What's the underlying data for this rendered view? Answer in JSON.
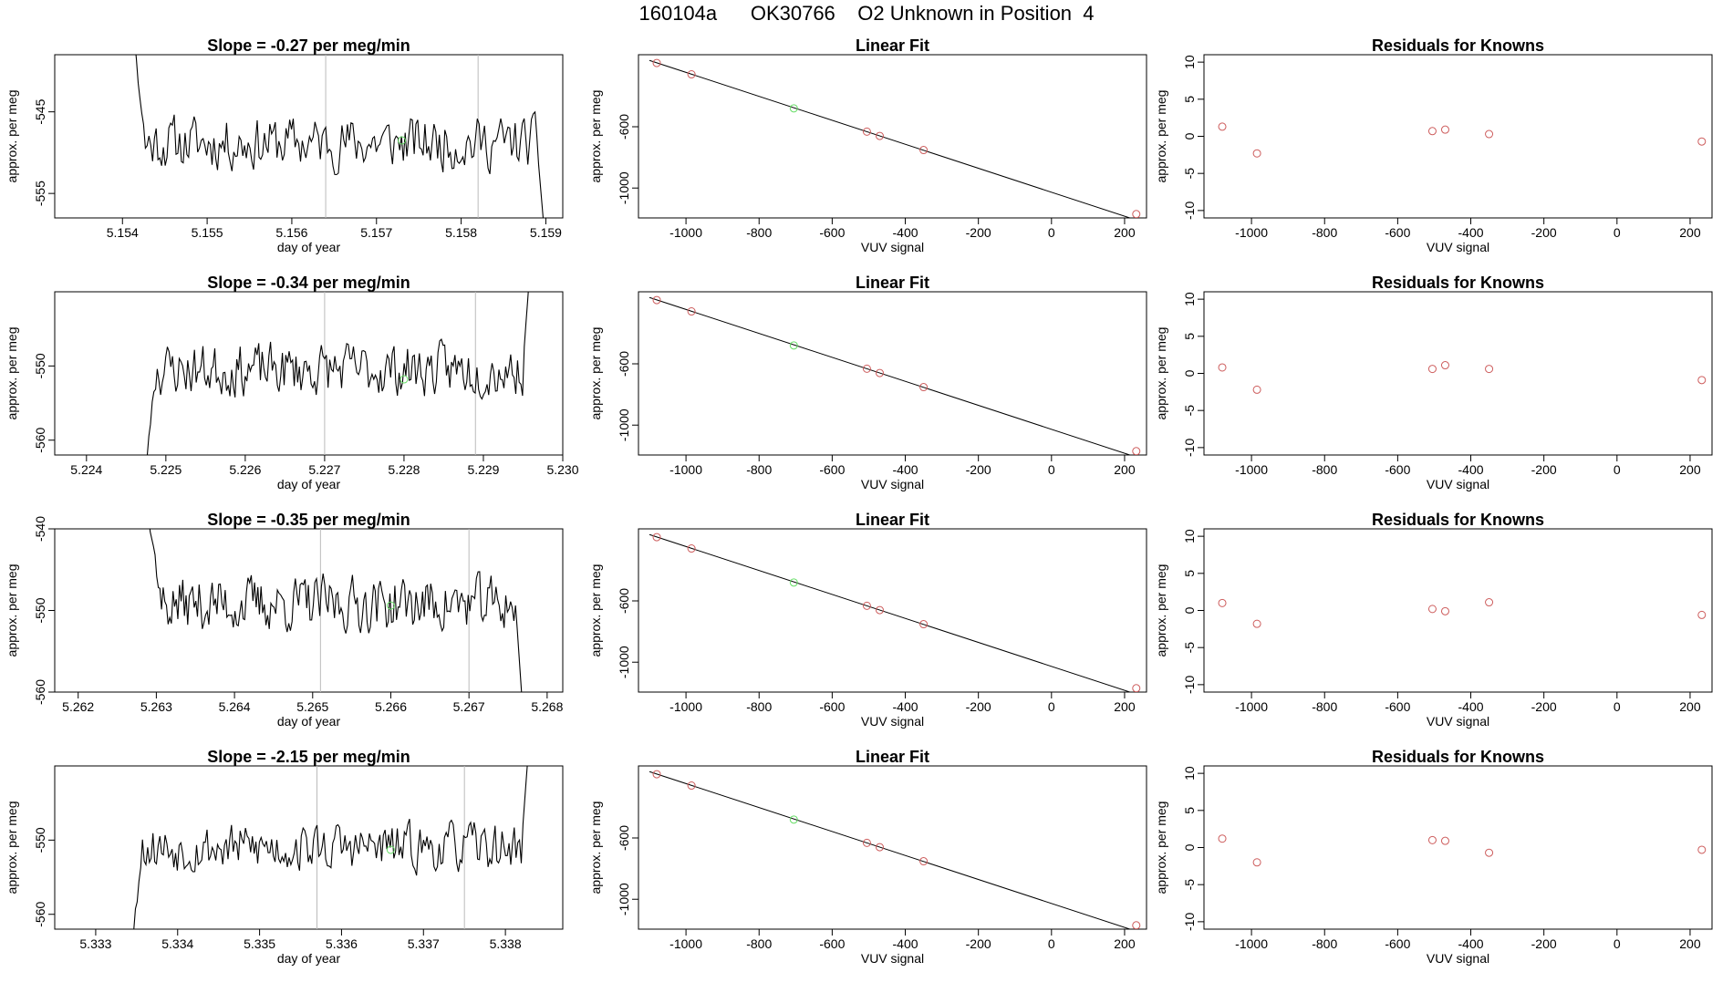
{
  "figure": {
    "title_parts": [
      "160104a",
      "OK30766",
      "O2 Unknown in Position  4"
    ]
  },
  "colors": {
    "known": "#cd5c5c",
    "unknown": "#66dd66",
    "line": "#000000",
    "vline": "#bbbbbb"
  },
  "rows": [
    {
      "time": {
        "title": "Slope =  -0.27  per meg/min",
        "xlabel": "day of year",
        "ylabel": "approx. per meg",
        "xlim": [
          5.1532,
          5.1592
        ],
        "ylim": [
          -558,
          -538
        ],
        "xticks": [
          5.154,
          5.155,
          5.156,
          5.157,
          5.158,
          5.159
        ],
        "xtick_labels": [
          "5.154",
          "5.155",
          "5.156",
          "5.157",
          "5.158",
          "5.159"
        ],
        "yticks": [
          -545,
          -555
        ],
        "ytick_labels": [
          "-545",
          "-555"
        ],
        "vlines": [
          5.1564,
          5.1582
        ],
        "unknown_point": [
          5.1573,
          -548.5
        ],
        "start": 5.1541,
        "end": 5.159,
        "level": -548.8,
        "amp": 2.4,
        "seed": 11,
        "start_y": -533,
        "end_y": -562
      },
      "fit": {
        "title": "Linear Fit",
        "xlabel": "VUV signal",
        "ylabel": "approx. per meg",
        "xlim": [
          -1130,
          260
        ],
        "ylim": [
          -1195,
          -130
        ],
        "xticks": [
          -1000,
          -800,
          -600,
          -400,
          -200,
          0,
          200
        ],
        "xtick_labels": [
          "-1000",
          "-800",
          "-600",
          "-400",
          "-200",
          "0",
          "200"
        ],
        "yticks": [
          -600,
          -1000
        ],
        "ytick_labels": [
          "-600",
          "-1000"
        ],
        "line_start": [
          -1100,
          -167
        ],
        "line_end": [
          240,
          -1215
        ],
        "knowns_x": [
          -1080,
          -985,
          -505,
          -470,
          -350,
          232
        ],
        "knowns_y": [
          -184,
          -258,
          -632,
          -660,
          -752,
          -1170
        ],
        "unknown": [
          -705,
          -480
        ]
      },
      "resid": {
        "title": "Residuals for Knowns",
        "xlabel": "VUV signal",
        "ylabel": "approx. per meg",
        "xlim": [
          -1130,
          260
        ],
        "ylim": [
          -11,
          11
        ],
        "xticks": [
          -1000,
          -800,
          -600,
          -400,
          -200,
          0,
          200
        ],
        "xtick_labels": [
          "-1000",
          "-800",
          "-600",
          "-400",
          "-200",
          "0",
          "200"
        ],
        "yticks": [
          10,
          5,
          0,
          -5,
          -10
        ],
        "ytick_labels": [
          "10",
          "5",
          "0",
          "-5",
          "-10"
        ],
        "x": [
          -1080,
          -985,
          -505,
          -470,
          -350,
          232
        ],
        "y": [
          1.3,
          -2.3,
          0.7,
          0.9,
          0.3,
          -0.7
        ]
      }
    },
    {
      "time": {
        "title": "Slope =  -0.34  per meg/min",
        "xlabel": "day of year",
        "ylabel": "approx. per meg",
        "xlim": [
          5.2236,
          5.23
        ],
        "ylim": [
          -562,
          -540
        ],
        "xticks": [
          5.224,
          5.225,
          5.226,
          5.227,
          5.228,
          5.229,
          5.23
        ],
        "xtick_labels": [
          "5.224",
          "5.225",
          "5.226",
          "5.227",
          "5.228",
          "5.229",
          "5.230"
        ],
        "yticks": [
          -550,
          -560
        ],
        "ytick_labels": [
          "-550",
          "-560"
        ],
        "vlines": [
          5.227,
          5.2289
        ],
        "unknown_point": [
          5.228,
          -551.8
        ],
        "start": 5.2247,
        "end": 5.2296,
        "level": -550.5,
        "amp": 2.6,
        "seed": 23,
        "start_y": -570,
        "end_y": -535
      },
      "fit": {
        "title": "Linear Fit",
        "xlabel": "VUV signal",
        "ylabel": "approx. per meg",
        "xlim": [
          -1130,
          260
        ],
        "ylim": [
          -1195,
          -130
        ],
        "xticks": [
          -1000,
          -800,
          -600,
          -400,
          -200,
          0,
          200
        ],
        "xtick_labels": [
          "-1000",
          "-800",
          "-600",
          "-400",
          "-200",
          "0",
          "200"
        ],
        "yticks": [
          -600,
          -1000
        ],
        "ytick_labels": [
          "-600",
          "-1000"
        ],
        "line_start": [
          -1100,
          -167
        ],
        "line_end": [
          240,
          -1215
        ],
        "knowns_x": [
          -1080,
          -985,
          -505,
          -470,
          -350,
          232
        ],
        "knowns_y": [
          -184,
          -258,
          -632,
          -660,
          -752,
          -1170
        ],
        "unknown": [
          -705,
          -480
        ]
      },
      "resid": {
        "title": "Residuals for Knowns",
        "xlabel": "VUV signal",
        "ylabel": "approx. per meg",
        "xlim": [
          -1130,
          260
        ],
        "ylim": [
          -11,
          11
        ],
        "xticks": [
          -1000,
          -800,
          -600,
          -400,
          -200,
          0,
          200
        ],
        "xtick_labels": [
          "-1000",
          "-800",
          "-600",
          "-400",
          "-200",
          "0",
          "200"
        ],
        "yticks": [
          10,
          5,
          0,
          -5,
          -10
        ],
        "ytick_labels": [
          "10",
          "5",
          "0",
          "-5",
          "-10"
        ],
        "x": [
          -1080,
          -985,
          -505,
          -470,
          -350,
          232
        ],
        "y": [
          0.8,
          -2.2,
          0.6,
          1.1,
          0.6,
          -0.9
        ]
      }
    },
    {
      "time": {
        "title": "Slope =  -0.35  per meg/min",
        "xlabel": "day of year",
        "ylabel": "approx. per meg",
        "xlim": [
          5.2617,
          5.2682
        ],
        "ylim": [
          -560,
          -540
        ],
        "xticks": [
          5.262,
          5.263,
          5.264,
          5.265,
          5.266,
          5.267,
          5.268
        ],
        "xtick_labels": [
          "5.262",
          "5.263",
          "5.264",
          "5.265",
          "5.266",
          "5.267",
          "5.268"
        ],
        "yticks": [
          -540,
          -550,
          -560
        ],
        "ytick_labels": [
          "-540",
          "-550",
          "-560"
        ],
        "vlines": [
          5.2651,
          5.267
        ],
        "unknown_point": [
          5.266,
          -549.4
        ],
        "start": 5.2629,
        "end": 5.2677,
        "level": -549.2,
        "amp": 2.5,
        "seed": 37,
        "start_y": -538,
        "end_y": -564
      },
      "fit": {
        "title": "Linear Fit",
        "xlabel": "VUV signal",
        "ylabel": "approx. per meg",
        "xlim": [
          -1130,
          260
        ],
        "ylim": [
          -1195,
          -130
        ],
        "xticks": [
          -1000,
          -800,
          -600,
          -400,
          -200,
          0,
          200
        ],
        "xtick_labels": [
          "-1000",
          "-800",
          "-600",
          "-400",
          "-200",
          "0",
          "200"
        ],
        "yticks": [
          -600,
          -1000
        ],
        "ytick_labels": [
          "-600",
          "-1000"
        ],
        "line_start": [
          -1100,
          -167
        ],
        "line_end": [
          240,
          -1215
        ],
        "knowns_x": [
          -1080,
          -985,
          -505,
          -470,
          -350,
          232
        ],
        "knowns_y": [
          -184,
          -258,
          -632,
          -660,
          -752,
          -1170
        ],
        "unknown": [
          -705,
          -480
        ]
      },
      "resid": {
        "title": "Residuals for Knowns",
        "xlabel": "VUV signal",
        "ylabel": "approx. per meg",
        "xlim": [
          -1130,
          260
        ],
        "ylim": [
          -11,
          11
        ],
        "xticks": [
          -1000,
          -800,
          -600,
          -400,
          -200,
          0,
          200
        ],
        "xtick_labels": [
          "-1000",
          "-800",
          "-600",
          "-400",
          "-200",
          "0",
          "200"
        ],
        "yticks": [
          10,
          5,
          0,
          -5,
          -10
        ],
        "ytick_labels": [
          "10",
          "5",
          "0",
          "-5",
          "-10"
        ],
        "x": [
          -1080,
          -985,
          -505,
          -470,
          -350,
          232
        ],
        "y": [
          1.0,
          -1.8,
          0.2,
          -0.1,
          1.1,
          -0.6
        ]
      }
    },
    {
      "time": {
        "title": "Slope =  -2.15  per meg/min",
        "xlabel": "day of year",
        "ylabel": "approx. per meg",
        "xlim": [
          5.3325,
          5.3387
        ],
        "ylim": [
          -562,
          -540
        ],
        "xticks": [
          5.333,
          5.334,
          5.335,
          5.336,
          5.337,
          5.338
        ],
        "xtick_labels": [
          "5.333",
          "5.334",
          "5.335",
          "5.336",
          "5.337",
          "5.338"
        ],
        "yticks": [
          -550,
          -560
        ],
        "ytick_labels": [
          "-550",
          "-560"
        ],
        "vlines": [
          5.3357,
          5.3375
        ],
        "unknown_point": [
          5.3366,
          -551.3
        ],
        "start": 5.3334,
        "end": 5.3383,
        "level": -551.0,
        "amp": 2.4,
        "seed": 53,
        "start_y": -568,
        "end_y": -535
      },
      "fit": {
        "title": "Linear Fit",
        "xlabel": "VUV signal",
        "ylabel": "approx. per meg",
        "xlim": [
          -1130,
          260
        ],
        "ylim": [
          -1195,
          -130
        ],
        "xticks": [
          -1000,
          -800,
          -600,
          -400,
          -200,
          0,
          200
        ],
        "xtick_labels": [
          "-1000",
          "-800",
          "-600",
          "-400",
          "-200",
          "0",
          "200"
        ],
        "yticks": [
          -600,
          -1000
        ],
        "ytick_labels": [
          "-600",
          "-1000"
        ],
        "line_start": [
          -1100,
          -167
        ],
        "line_end": [
          240,
          -1215
        ],
        "knowns_x": [
          -1080,
          -985,
          -505,
          -470,
          -350,
          232
        ],
        "knowns_y": [
          -184,
          -258,
          -632,
          -660,
          -752,
          -1170
        ],
        "unknown": [
          -705,
          -480
        ]
      },
      "resid": {
        "title": "Residuals for Knowns",
        "xlabel": "VUV signal",
        "ylabel": "approx. per meg",
        "xlim": [
          -1130,
          260
        ],
        "ylim": [
          -11,
          11
        ],
        "xticks": [
          -1000,
          -800,
          -600,
          -400,
          -200,
          0,
          200
        ],
        "xtick_labels": [
          "-1000",
          "-800",
          "-600",
          "-400",
          "-200",
          "0",
          "200"
        ],
        "yticks": [
          10,
          5,
          0,
          -5,
          -10
        ],
        "ytick_labels": [
          "10",
          "5",
          "0",
          "-5",
          "-10"
        ],
        "x": [
          -1080,
          -985,
          -505,
          -470,
          -350,
          232
        ],
        "y": [
          1.2,
          -2.0,
          1.0,
          0.9,
          -0.7,
          -0.3
        ]
      }
    }
  ],
  "chart_data": [
    {
      "type": "line",
      "title": "Slope =  -0.27  per meg/min",
      "xlabel": "day of year",
      "ylabel": "approx. per meg",
      "xlim": [
        5.1532,
        5.1592
      ],
      "ylim": [
        -558,
        -538
      ],
      "series": [
        {
          "name": "signal",
          "x_range": [
            5.1541,
            5.159
          ],
          "mean": -548.8
        }
      ],
      "highlight": [
        5.1573,
        -548.5
      ],
      "vlines": [
        5.1564,
        5.1582
      ]
    },
    {
      "type": "scatter",
      "title": "Linear Fit",
      "xlabel": "VUV signal",
      "ylabel": "approx. per meg",
      "x": [
        -1080,
        -985,
        -505,
        -470,
        -350,
        232
      ],
      "y": [
        -184,
        -258,
        -632,
        -660,
        -752,
        -1170
      ],
      "unknown": [
        -705,
        -480
      ]
    },
    {
      "type": "scatter",
      "title": "Residuals for Knowns",
      "xlabel": "VUV signal",
      "ylabel": "approx. per meg",
      "x": [
        -1080,
        -985,
        -505,
        -470,
        -350,
        232
      ],
      "y": [
        1.3,
        -2.3,
        0.7,
        0.9,
        0.3,
        -0.7
      ]
    },
    {
      "type": "line",
      "title": "Slope =  -0.34  per meg/min",
      "xlabel": "day of year",
      "ylabel": "approx. per meg",
      "xlim": [
        5.2236,
        5.23
      ],
      "ylim": [
        -562,
        -540
      ],
      "series": [
        {
          "name": "signal",
          "x_range": [
            5.2247,
            5.2296
          ],
          "mean": -550.5
        }
      ],
      "highlight": [
        5.228,
        -551.8
      ],
      "vlines": [
        5.227,
        5.2289
      ]
    },
    {
      "type": "scatter",
      "title": "Linear Fit",
      "xlabel": "VUV signal",
      "ylabel": "approx. per meg",
      "x": [
        -1080,
        -985,
        -505,
        -470,
        -350,
        232
      ],
      "y": [
        -184,
        -258,
        -632,
        -660,
        -752,
        -1170
      ],
      "unknown": [
        -705,
        -480
      ]
    },
    {
      "type": "scatter",
      "title": "Residuals for Knowns",
      "xlabel": "VUV signal",
      "ylabel": "approx. per meg",
      "x": [
        -1080,
        -985,
        -505,
        -470,
        -350,
        232
      ],
      "y": [
        0.8,
        -2.2,
        0.6,
        1.1,
        0.6,
        -0.9
      ]
    },
    {
      "type": "line",
      "title": "Slope =  -0.35  per meg/min",
      "xlabel": "day of year",
      "ylabel": "approx. per meg",
      "xlim": [
        5.2617,
        5.2682
      ],
      "ylim": [
        -560,
        -540
      ],
      "series": [
        {
          "name": "signal",
          "x_range": [
            5.2629,
            5.2677
          ],
          "mean": -549.2
        }
      ],
      "highlight": [
        5.266,
        -549.4
      ],
      "vlines": [
        5.2651,
        5.267
      ]
    },
    {
      "type": "scatter",
      "title": "Linear Fit",
      "xlabel": "VUV signal",
      "ylabel": "approx. per meg",
      "x": [
        -1080,
        -985,
        -505,
        -470,
        -350,
        232
      ],
      "y": [
        -184,
        -258,
        -632,
        -660,
        -752,
        -1170
      ],
      "unknown": [
        -705,
        -480
      ]
    },
    {
      "type": "scatter",
      "title": "Residuals for Knowns",
      "xlabel": "VUV signal",
      "ylabel": "approx. per meg",
      "x": [
        -1080,
        -985,
        -505,
        -470,
        -350,
        232
      ],
      "y": [
        1.0,
        -1.8,
        0.2,
        -0.1,
        1.1,
        -0.6
      ]
    },
    {
      "type": "line",
      "title": "Slope =  -2.15  per meg/min",
      "xlabel": "day of year",
      "ylabel": "approx. per meg",
      "xlim": [
        5.3325,
        5.3387
      ],
      "ylim": [
        -562,
        -540
      ],
      "series": [
        {
          "name": "signal",
          "x_range": [
            5.3334,
            5.3383
          ],
          "mean": -551.0
        }
      ],
      "highlight": [
        5.3366,
        -551.3
      ],
      "vlines": [
        5.3357,
        5.3375
      ]
    },
    {
      "type": "scatter",
      "title": "Linear Fit",
      "xlabel": "VUV signal",
      "ylabel": "approx. per meg",
      "x": [
        -1080,
        -985,
        -505,
        -470,
        -350,
        232
      ],
      "y": [
        -184,
        -258,
        -632,
        -660,
        -752,
        -1170
      ],
      "unknown": [
        -705,
        -480
      ]
    },
    {
      "type": "scatter",
      "title": "Residuals for Knowns",
      "xlabel": "VUV signal",
      "ylabel": "approx. per meg",
      "x": [
        -1080,
        -985,
        -505,
        -470,
        -350,
        232
      ],
      "y": [
        1.2,
        -2.0,
        1.0,
        0.9,
        -0.7,
        -0.3
      ]
    }
  ]
}
